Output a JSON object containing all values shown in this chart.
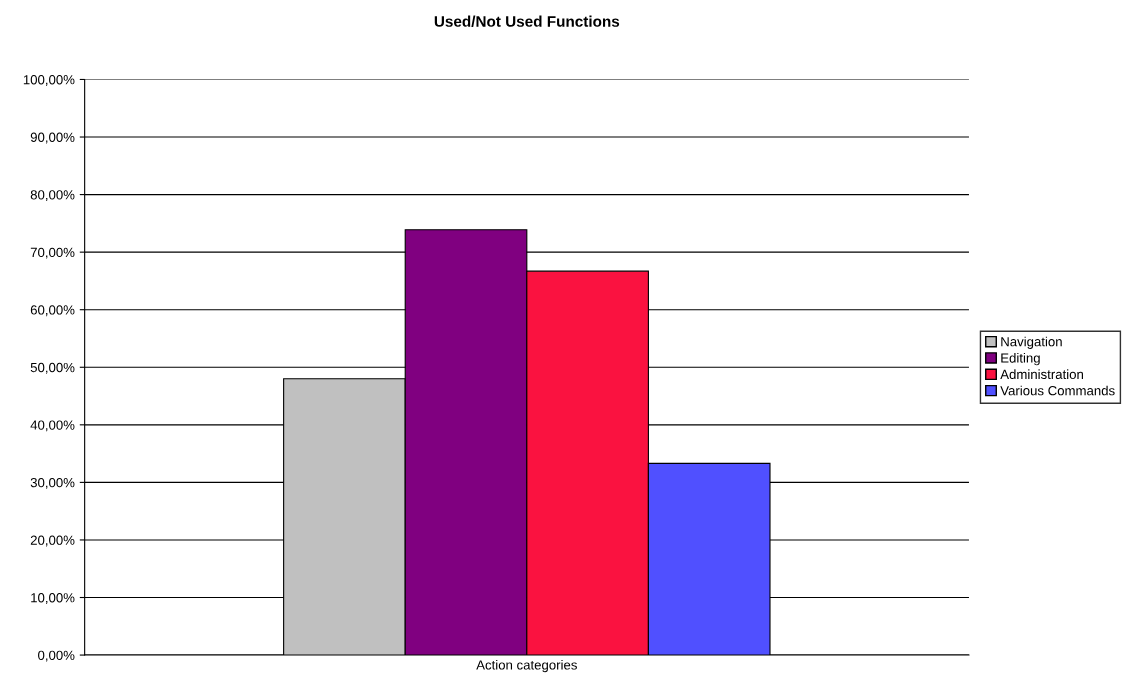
{
  "chart_data": {
    "type": "bar",
    "title": "Used/Not Used Functions",
    "categories": [
      "Action categories"
    ],
    "series": [
      {
        "name": "Navigation",
        "color": "#c0c0c0",
        "values": [
          48.0
        ]
      },
      {
        "name": "Editing",
        "color": "#800080",
        "values": [
          73.9
        ]
      },
      {
        "name": "Administration",
        "color": "#fa1240",
        "values": [
          66.7
        ]
      },
      {
        "name": "Various Commands",
        "color": "#5050ff",
        "values": [
          33.3
        ]
      }
    ],
    "ylim": [
      0,
      100
    ],
    "yticks": [
      {
        "value": 0,
        "label": "0,00%"
      },
      {
        "value": 10,
        "label": "10,00%"
      },
      {
        "value": 20,
        "label": "20,00%"
      },
      {
        "value": 30,
        "label": "30,00%"
      },
      {
        "value": 40,
        "label": "40,00%"
      },
      {
        "value": 50,
        "label": "50,00%"
      },
      {
        "value": 60,
        "label": "60,00%"
      },
      {
        "value": 70,
        "label": "70,00%"
      },
      {
        "value": 80,
        "label": "80,00%"
      },
      {
        "value": 90,
        "label": "90,00%"
      },
      {
        "value": 100,
        "label": "100,00%"
      }
    ],
    "grid": "y",
    "legend": "right"
  }
}
